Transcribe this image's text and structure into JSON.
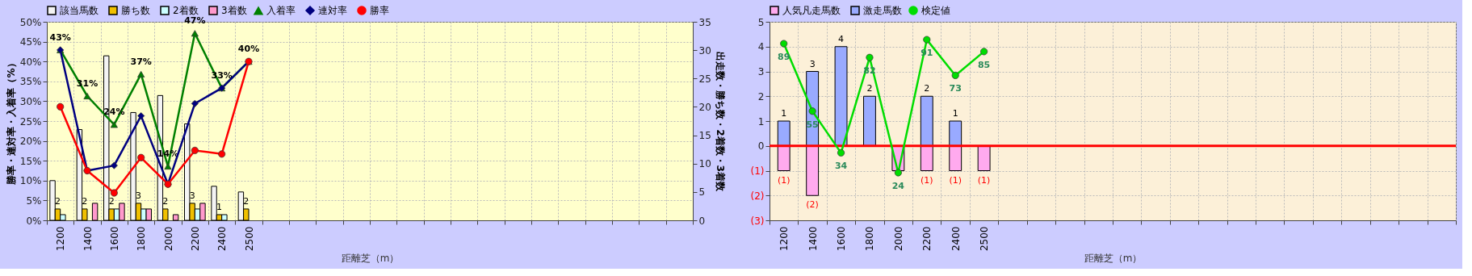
{
  "chart_data": [
    {
      "type": "bar",
      "xlabel": "距離芝（m）",
      "ylabel": "勝率・連対率・入着率（%）",
      "y2label": "出走数・勝ち数・2着数・3着数",
      "categories": [
        "1200",
        "1400",
        "1600",
        "1800",
        "2000",
        "2200",
        "2400",
        "2500",
        null,
        null,
        null,
        null,
        null,
        null,
        null,
        null,
        null,
        null,
        null,
        null,
        null,
        null,
        null,
        null
      ],
      "series": [
        {
          "name": "該当馬数",
          "axis": "y2",
          "color": "#f4f4f4",
          "values": [
            7,
            16,
            29,
            19,
            22,
            17,
            6,
            5,
            null,
            null,
            null,
            null,
            null,
            null,
            null,
            null,
            null,
            null,
            null,
            null,
            null,
            null,
            null,
            null
          ]
        },
        {
          "name": "勝ち数",
          "axis": "y2",
          "color": "#f0c000",
          "values": [
            2,
            2,
            2,
            3,
            2,
            3,
            1,
            2,
            null,
            null,
            null,
            null,
            null,
            null,
            null,
            null,
            null,
            null,
            null,
            null,
            null,
            null,
            null,
            null
          ],
          "value_labels": [
            "2",
            "2",
            "2",
            "3",
            "2",
            "3",
            "1",
            "2",
            null,
            null,
            null,
            null,
            null,
            null,
            null,
            null,
            null,
            null,
            null,
            null,
            null,
            null,
            null,
            null
          ]
        },
        {
          "name": "2着数",
          "axis": "y2",
          "color": "#ccffff",
          "values": [
            1,
            0,
            2,
            2,
            0,
            2,
            1,
            0,
            null,
            null,
            null,
            null,
            null,
            null,
            null,
            null,
            null,
            null,
            null,
            null,
            null,
            null,
            null,
            null
          ]
        },
        {
          "name": "3着数",
          "axis": "y2",
          "color": "#ff99cc",
          "values": [
            0,
            3,
            3,
            2,
            1,
            3,
            0,
            0,
            null,
            null,
            null,
            null,
            null,
            null,
            null,
            null,
            null,
            null,
            null,
            null,
            null,
            null,
            null,
            null
          ]
        },
        {
          "name": "入着率",
          "type": "line",
          "color": "#008000",
          "marker": "triangle",
          "values": [
            42.9,
            31.3,
            24.1,
            36.8,
            13.6,
            47.1,
            33.3,
            40.0,
            null,
            null,
            null,
            null,
            null,
            null,
            null,
            null,
            null,
            null,
            null,
            null,
            null,
            null,
            null,
            null
          ],
          "value_labels": [
            "43%",
            "31%",
            "24%",
            "37%",
            "14%",
            "47%",
            "33%",
            "40%",
            null,
            null,
            null,
            null,
            null,
            null,
            null,
            null,
            null,
            null,
            null,
            null,
            null,
            null,
            null,
            null
          ]
        },
        {
          "name": "連対率",
          "type": "line",
          "color": "#000080",
          "marker": "diamond",
          "values": [
            42.9,
            12.5,
            13.8,
            26.3,
            9.1,
            29.4,
            33.3,
            40.0,
            null,
            null,
            null,
            null,
            null,
            null,
            null,
            null,
            null,
            null,
            null,
            null,
            null,
            null,
            null,
            null
          ]
        },
        {
          "name": "勝率",
          "type": "line",
          "color": "#ff0000",
          "marker": "circle",
          "values": [
            28.6,
            12.5,
            6.9,
            15.8,
            9.1,
            17.6,
            16.7,
            40.0,
            null,
            null,
            null,
            null,
            null,
            null,
            null,
            null,
            null,
            null,
            null,
            null,
            null,
            null,
            null,
            null
          ]
        }
      ],
      "ylim": [
        0,
        50
      ],
      "yticks": [
        {
          "value": 0,
          "label": "0%"
        },
        {
          "value": 5,
          "label": "5%"
        },
        {
          "value": 10,
          "label": "10%"
        },
        {
          "value": 15,
          "label": "15%"
        },
        {
          "value": 20,
          "label": "20%"
        },
        {
          "value": 25,
          "label": "25%"
        },
        {
          "value": 30,
          "label": "30%"
        },
        {
          "value": 35,
          "label": "35%"
        },
        {
          "value": 40,
          "label": "40%"
        },
        {
          "value": 45,
          "label": "45%"
        },
        {
          "value": 50,
          "label": "50%"
        }
      ],
      "y2lim": [
        0,
        35
      ],
      "y2ticks": [
        0,
        5,
        10,
        15,
        20,
        25,
        30,
        35
      ],
      "grid": true,
      "legend": "top",
      "line_style": "solid"
    },
    {
      "type": "bar",
      "xlabel": "距離芝（m）",
      "categories": [
        "1200",
        "1400",
        "1600",
        "1800",
        "2000",
        "2200",
        "2400",
        "2500",
        null,
        null,
        null,
        null,
        null,
        null,
        null,
        null,
        null,
        null,
        null,
        null,
        null,
        null,
        null,
        null
      ],
      "stacked": true,
      "series": [
        {
          "name": "人気凡走馬数",
          "color": "#ffaaee",
          "values": [
            -1,
            -2,
            0,
            0,
            -1,
            -1,
            -1,
            -1,
            null,
            null,
            null,
            null,
            null,
            null,
            null,
            null,
            null,
            null,
            null,
            null,
            null,
            null,
            null,
            null
          ],
          "value_labels": [
            "(1)",
            "(2)",
            null,
            null,
            null,
            "(1)",
            "(1)",
            "(1)",
            null,
            null,
            null,
            null,
            null,
            null,
            null,
            null,
            null,
            null,
            null,
            null,
            null,
            null,
            null,
            null
          ]
        },
        {
          "name": "激走馬数",
          "color": "#99aaff",
          "values": [
            1,
            3,
            4,
            2,
            0,
            2,
            1,
            0,
            null,
            null,
            null,
            null,
            null,
            null,
            null,
            null,
            null,
            null,
            null,
            null,
            null,
            null,
            null,
            null
          ],
          "value_labels": [
            "1",
            "3",
            "4",
            "2",
            null,
            "2",
            "1",
            null,
            null,
            null,
            null,
            null,
            null,
            null,
            null,
            null,
            null,
            null,
            null,
            null,
            null,
            null,
            null,
            null
          ]
        },
        {
          "name": "検定値",
          "type": "line",
          "axis": "y2",
          "color": "#00dd00",
          "marker": "circle",
          "values": [
            89,
            55,
            34,
            82,
            24,
            91,
            73,
            85,
            null,
            null,
            null,
            null,
            null,
            null,
            null,
            null,
            null,
            null,
            null,
            null,
            null,
            null,
            null,
            null
          ],
          "value_labels": [
            "89",
            "55",
            "34",
            "82",
            "24",
            "91",
            "73",
            "85",
            null,
            null,
            null,
            null,
            null,
            null,
            null,
            null,
            null,
            null,
            null,
            null,
            null,
            null,
            null,
            null
          ]
        }
      ],
      "ylim": [
        -3,
        5
      ],
      "yticks": [
        {
          "value": -3,
          "label": "(3)"
        },
        {
          "value": -2,
          "label": "(2)"
        },
        {
          "value": -1,
          "label": "(1)"
        },
        0,
        1,
        2,
        3,
        4,
        5
      ],
      "y2lim": [
        0,
        100
      ],
      "ref_lines": [
        {
          "axis": "y",
          "value": 0,
          "color": "#ff0000"
        }
      ],
      "grid": true,
      "legend": "top",
      "line_style": "solid"
    }
  ]
}
